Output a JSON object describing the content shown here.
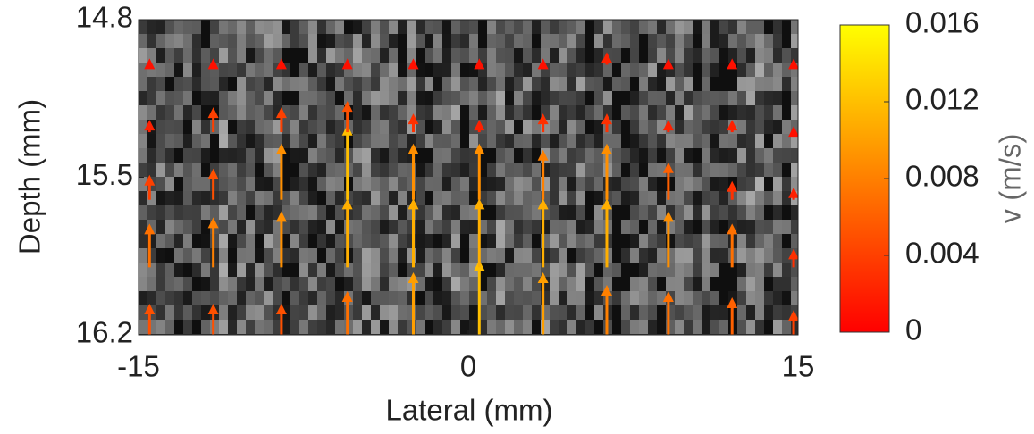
{
  "chart_data": {
    "type": "quiver",
    "x_label": "Lateral (mm)",
    "y_label": "Depth (mm)",
    "colorbar_label": "v (m/s)",
    "xlim": [
      -15,
      15
    ],
    "xticks": [
      -15,
      0,
      15
    ],
    "ylim": [
      14.8,
      16.2
    ],
    "yticks": [
      14.8,
      15.5,
      16.2
    ],
    "y_inverted": true,
    "clim": [
      0,
      0.016
    ],
    "cticks": [
      0,
      0.004,
      0.008,
      0.012,
      0.016
    ],
    "colormap": [
      "#ff0000",
      "#ffff00"
    ],
    "x": [
      -14.5,
      -11.6,
      -8.5,
      -5.5,
      -2.5,
      0.5,
      3.4,
      6.3,
      9.1,
      12.0,
      14.8
    ],
    "y": [
      16.2,
      15.9,
      15.6,
      15.3,
      15.0
    ],
    "values": [
      [
        0.005,
        0.005,
        0.005,
        0.007,
        0.01,
        0.012,
        0.01,
        0.008,
        0.007,
        0.006,
        0.004
      ],
      [
        0.007,
        0.008,
        0.009,
        0.011,
        0.011,
        0.011,
        0.011,
        0.011,
        0.009,
        0.007,
        0.003
      ],
      [
        0.004,
        0.005,
        0.009,
        0.012,
        0.009,
        0.009,
        0.008,
        0.009,
        0.006,
        0.003,
        0.002
      ],
      [
        0.002,
        0.004,
        0.004,
        0.005,
        0.003,
        0.002,
        0.003,
        0.003,
        0.002,
        0.002,
        0.001
      ],
      [
        0.001,
        0.001,
        0.001,
        0.001,
        0.001,
        0.001,
        0.001,
        0.002,
        0.001,
        0.001,
        0.001
      ]
    ]
  }
}
